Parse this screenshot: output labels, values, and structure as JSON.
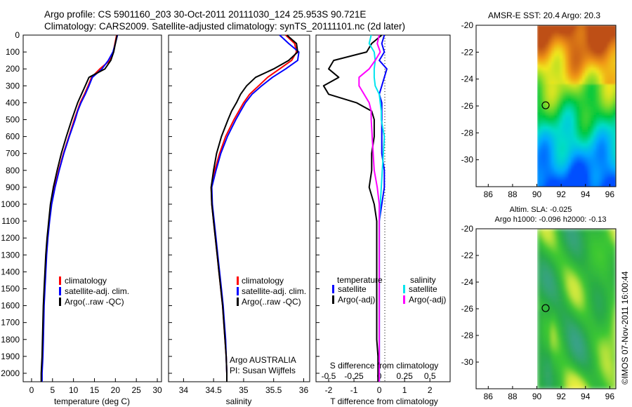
{
  "header": {
    "line1": "Argo profile: CS 5901160_203 30-Oct-2011 20111030_124 25.953S 90.721E",
    "line2": "Climatology: CARS2009. Satellite-adjusted climatology: synTS_20111101.nc (2d later)"
  },
  "depth_ticks": [
    "0",
    "100",
    "200",
    "300",
    "400",
    "500",
    "600",
    "700",
    "800",
    "900",
    "1000",
    "1100",
    "1200",
    "1300",
    "1400",
    "1500",
    "1600",
    "1700",
    "1800",
    "1900",
    "2000"
  ],
  "colors": {
    "climatology": "#ff0000",
    "satellite": "#0000ff",
    "argo": "#000000",
    "sat_salinity": "#00e5ee",
    "argo_salinity": "#ff00ff"
  },
  "chart_data": [
    {
      "type": "line",
      "xlabel": "temperature (deg C)",
      "xticks": [
        "0",
        "5",
        "10",
        "15",
        "20",
        "25",
        "30"
      ],
      "xlim": [
        -2,
        31
      ],
      "ylim": [
        0,
        2050
      ],
      "y_inverted": true,
      "depth": [
        0,
        50,
        100,
        150,
        200,
        250,
        300,
        350,
        400,
        450,
        500,
        600,
        700,
        800,
        900,
        1000,
        1100,
        1200,
        1300,
        1400,
        1500,
        1600,
        1700,
        1800,
        1900,
        2000,
        2050
      ],
      "series": [
        {
          "name": "climatology",
          "values": [
            20.3,
            19.9,
            19.5,
            18.7,
            16.3,
            14.3,
            13.5,
            12.6,
            11.6,
            10.9,
            10.2,
            8.9,
            7.6,
            6.5,
            5.5,
            4.6,
            4.2,
            3.8,
            3.5,
            3.3,
            3.1,
            2.9,
            2.8,
            2.7,
            2.6,
            2.4,
            2.4
          ]
        },
        {
          "name": "satellite-adj. clim.",
          "values": [
            20.5,
            20.0,
            19.4,
            18.3,
            16.8,
            14.5,
            13.7,
            12.8,
            11.8,
            11.0,
            10.4,
            9.0,
            7.7,
            6.6,
            5.6,
            4.8,
            4.3,
            3.9,
            3.6,
            3.4,
            3.2,
            3.0,
            2.9,
            2.8,
            2.7,
            2.5,
            2.5
          ]
        },
        {
          "name": "Argo(..raw -QC)",
          "values": [
            20.4,
            20.0,
            19.6,
            18.9,
            17.5,
            13.7,
            12.8,
            11.9,
            11.0,
            10.3,
            9.6,
            8.3,
            7.1,
            6.1,
            5.2,
            4.5,
            4.1,
            3.7,
            3.4,
            3.2,
            3.0,
            2.8,
            2.7,
            2.6,
            2.5,
            2.3,
            2.3
          ]
        }
      ],
      "legend": [
        "climatology",
        "satellite-adj. clim.",
        "Argo(..raw -QC)"
      ]
    },
    {
      "type": "line",
      "xlabel": "salinity",
      "xticks": [
        "34",
        "34.5",
        "35",
        "35.5",
        "36"
      ],
      "xlim": [
        33.75,
        36.1
      ],
      "ylim": [
        0,
        2050
      ],
      "y_inverted": true,
      "depth": [
        0,
        50,
        100,
        150,
        200,
        250,
        300,
        350,
        400,
        450,
        500,
        600,
        700,
        800,
        900,
        1000,
        1100,
        1200,
        1300,
        1400,
        1500,
        1600,
        1700,
        1800,
        1900,
        2000,
        2050
      ],
      "series": [
        {
          "name": "climatology",
          "values": [
            35.7,
            35.85,
            35.88,
            35.8,
            35.6,
            35.4,
            35.25,
            35.1,
            35.0,
            34.92,
            34.84,
            34.7,
            34.6,
            34.52,
            34.46,
            34.47,
            34.5,
            34.53,
            34.56,
            34.59,
            34.62,
            34.65,
            34.67,
            34.69,
            34.71,
            34.72,
            34.72
          ]
        },
        {
          "name": "satellite-adj. clim.",
          "values": [
            35.6,
            35.75,
            35.92,
            35.9,
            35.7,
            35.48,
            35.3,
            35.14,
            35.03,
            34.95,
            34.87,
            34.73,
            34.62,
            34.54,
            34.47,
            34.48,
            34.51,
            34.54,
            34.57,
            34.6,
            34.63,
            34.66,
            34.68,
            34.7,
            34.71,
            34.72,
            34.72
          ]
        },
        {
          "name": "Argo(..raw -QC)",
          "values": [
            35.72,
            35.88,
            35.9,
            35.75,
            35.5,
            35.2,
            35.05,
            34.95,
            34.88,
            34.8,
            34.74,
            34.63,
            34.55,
            34.5,
            34.46,
            34.47,
            34.5,
            34.53,
            34.56,
            34.59,
            34.62,
            34.65,
            34.67,
            34.69,
            34.71,
            34.72,
            34.72
          ]
        }
      ],
      "legend": [
        "climatology",
        "satellite-adj. clim.",
        "Argo(..raw -QC)"
      ],
      "annotations": [
        "Argo AUSTRALIA",
        "PI: Susan Wijffels"
      ]
    },
    {
      "type": "line",
      "xlabel": "T difference from climatology",
      "xlabel_top": "S difference from climatology",
      "xticks": [
        "-2",
        "-1",
        "0",
        "1",
        "2"
      ],
      "xticks_top": [
        "-0.5",
        "-0.25",
        "0",
        "0.25",
        "0.5"
      ],
      "xlim": [
        -2.5,
        2.8
      ],
      "ylim": [
        0,
        2050
      ],
      "y_inverted": true,
      "depth": [
        0,
        50,
        100,
        150,
        200,
        250,
        300,
        350,
        400,
        450,
        500,
        600,
        700,
        800,
        900,
        1000,
        1100,
        1200,
        1300,
        1400,
        1500,
        1600,
        1700,
        1800,
        1900,
        2000,
        2050
      ],
      "series": [
        {
          "name": "temperature satellite",
          "values": [
            0.2,
            0.1,
            0.2,
            0.0,
            0.3,
            0.2,
            0.1,
            0.0,
            0.1,
            0.1,
            0.1,
            0.1,
            0.1,
            0.2,
            0.2,
            0.1,
            0.0,
            0.0,
            0.0,
            0.0,
            0.0,
            0.0,
            0.0,
            0.0,
            0.0,
            0.0,
            0.0
          ]
        },
        {
          "name": "temperature Argo(-adj)",
          "values": [
            0.1,
            -0.3,
            -0.5,
            -1.8,
            -2.0,
            -1.6,
            -2.2,
            -2.0,
            -0.9,
            -0.3,
            -0.2,
            -0.2,
            -0.3,
            -0.3,
            -0.4,
            -0.2,
            -0.1,
            -0.1,
            -0.1,
            -0.1,
            -0.1,
            -0.1,
            -0.1,
            -0.1,
            -0.05,
            -0.05,
            -0.05
          ]
        },
        {
          "name": "salinity satellite",
          "values": [
            -0.08,
            -0.1,
            -0.05,
            -0.04,
            -0.05,
            -0.05,
            -0.04,
            0.0,
            0.01,
            0.02,
            0.02,
            0.05,
            0.04,
            0.03,
            0.02,
            0.01,
            0.0,
            0.0,
            0.0,
            0.0,
            0.0,
            0.0,
            0.0,
            0.0,
            0.0,
            0.0,
            0.0
          ]
        },
        {
          "name": "salinity Argo(-adj)",
          "values": [
            0.0,
            -0.02,
            0.01,
            -0.04,
            -0.1,
            -0.2,
            -0.2,
            -0.15,
            -0.1,
            -0.08,
            -0.08,
            -0.07,
            -0.06,
            -0.05,
            -0.02,
            0.0,
            0.0,
            0.0,
            0.0,
            0.0,
            0.0,
            0.0,
            0.0,
            0.0,
            0.0,
            0.0,
            0.0
          ]
        }
      ],
      "legend": {
        "temperature_title": "temperature",
        "salinity_title": "salinity",
        "items": [
          "satellite",
          "Argo(-adj)",
          "satellite",
          "Argo(-adj)"
        ]
      }
    },
    {
      "type": "heatmap",
      "title": "AMSR-E SST: 20.4  Argo: 20.3",
      "xticks": [
        "86",
        "88",
        "90",
        "92",
        "94",
        "96"
      ],
      "yticks": [
        "-20",
        "-22",
        "-24",
        "-26",
        "-28",
        "-30"
      ],
      "xlim": [
        85,
        96.5
      ],
      "ylim": [
        -32,
        -20
      ],
      "marker": {
        "lon": 90.72,
        "lat": -25.95
      }
    },
    {
      "type": "heatmap",
      "title": "Altim. SLA: -0.025",
      "subtitle": "Argo h1000: -0.096 h2000: -0.13",
      "xticks": [
        "86",
        "88",
        "90",
        "92",
        "94",
        "96"
      ],
      "yticks": [
        "-20",
        "-22",
        "-24",
        "-26",
        "-28",
        "-30"
      ],
      "xlim": [
        85,
        96.5
      ],
      "ylim": [
        -32,
        -20
      ],
      "marker": {
        "lon": 90.72,
        "lat": -25.95
      }
    }
  ],
  "stamp": "©IMOS 07-Nov-2011 16:00:44"
}
